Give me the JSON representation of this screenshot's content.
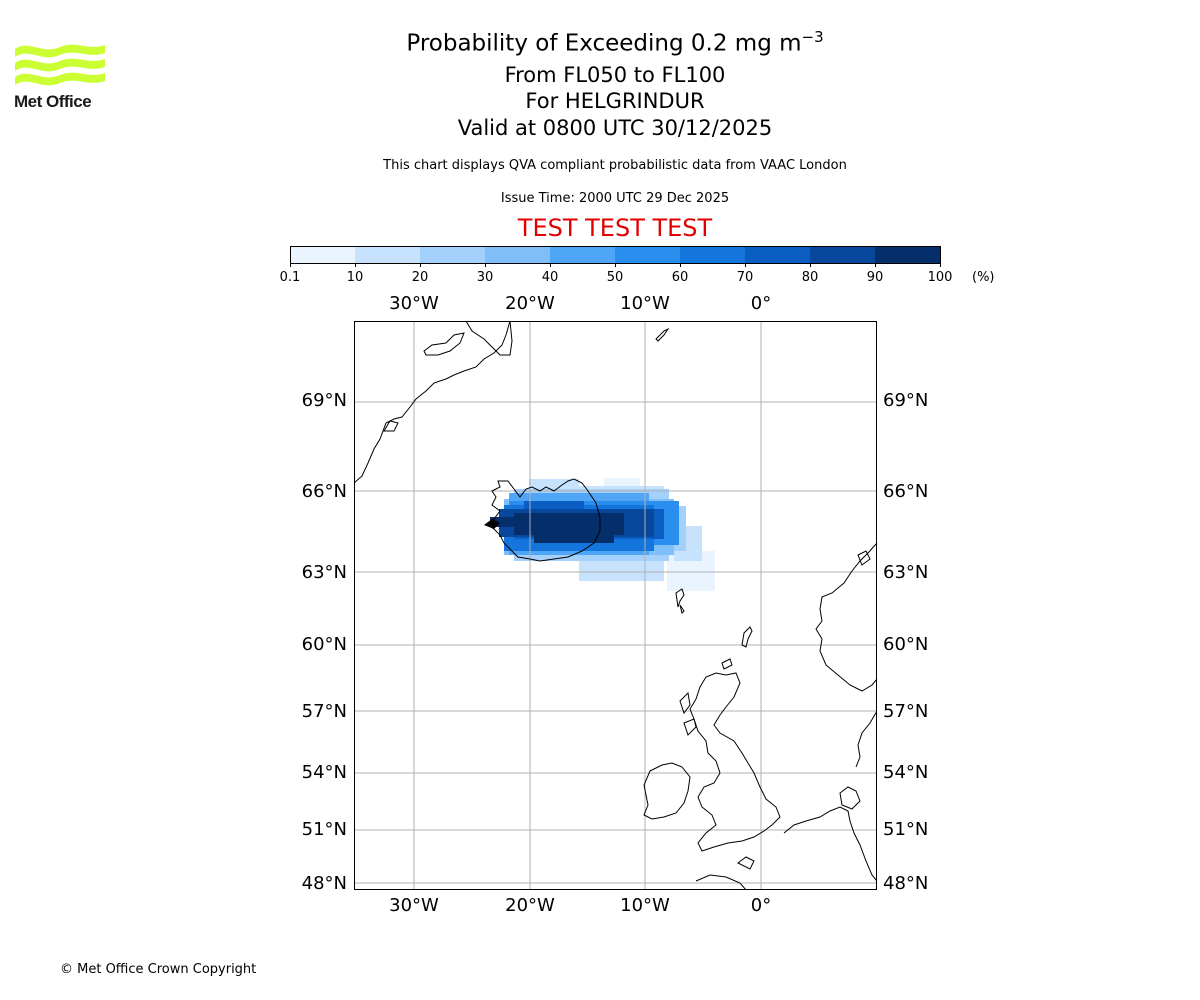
{
  "brand": {
    "name": "Met Office",
    "color": "#ccff33"
  },
  "header": {
    "title_main": "Probability of Exceeding 0.2 mg m",
    "title_exp": "−3",
    "levels": "From FL050 to FL100",
    "volcano": "For HELGRINDUR",
    "valid": "Valid at 0800 UTC 30/12/2025",
    "note": "This chart displays QVA compliant probabilistic data from VAAC London",
    "issue": "Issue Time: 2000 UTC 29 Dec 2025",
    "test_banner": "TEST TEST TEST"
  },
  "colorbar": {
    "ticks": [
      "0.1",
      "10",
      "20",
      "30",
      "40",
      "50",
      "60",
      "70",
      "80",
      "90",
      "100"
    ],
    "unit": "(%)",
    "colors": [
      "#eaf4ff",
      "#c7e2fd",
      "#a3d1fc",
      "#7fbef9",
      "#4fa6f6",
      "#2a8eef",
      "#1476dd",
      "#0a5ec2",
      "#07489c",
      "#052f6b"
    ]
  },
  "map": {
    "lon_labels": [
      "30°W",
      "20°W",
      "10°W",
      "0°"
    ],
    "lat_labels": [
      "69°N",
      "66°N",
      "63°N",
      "60°N",
      "57°N",
      "54°N",
      "51°N",
      "48°N"
    ]
  },
  "footer": {
    "copyright": "© Met Office Crown Copyright"
  }
}
